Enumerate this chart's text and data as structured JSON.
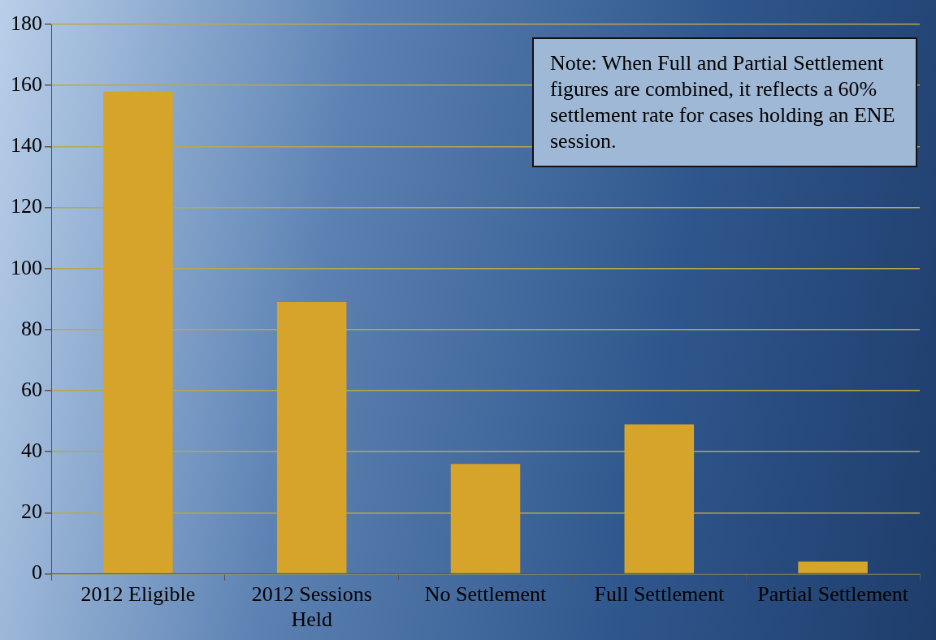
{
  "chart_data": {
    "type": "bar",
    "categories": [
      "2012 Eligible",
      "2012 Sessions Held",
      "No Settlement",
      "Full Settlement",
      "Partial Settlement"
    ],
    "values": [
      158,
      89,
      36,
      49,
      4
    ],
    "color": "#d6a42a",
    "ylim": [
      0,
      180
    ],
    "yticks": [
      0,
      20,
      40,
      60,
      80,
      100,
      120,
      140,
      160,
      180
    ],
    "grid": "y",
    "legend": false,
    "annotations": [
      "Note:  When Full and Partial Settlement figures are combined, it reflects a 60% settlement rate for cases holding an ENE session."
    ]
  }
}
